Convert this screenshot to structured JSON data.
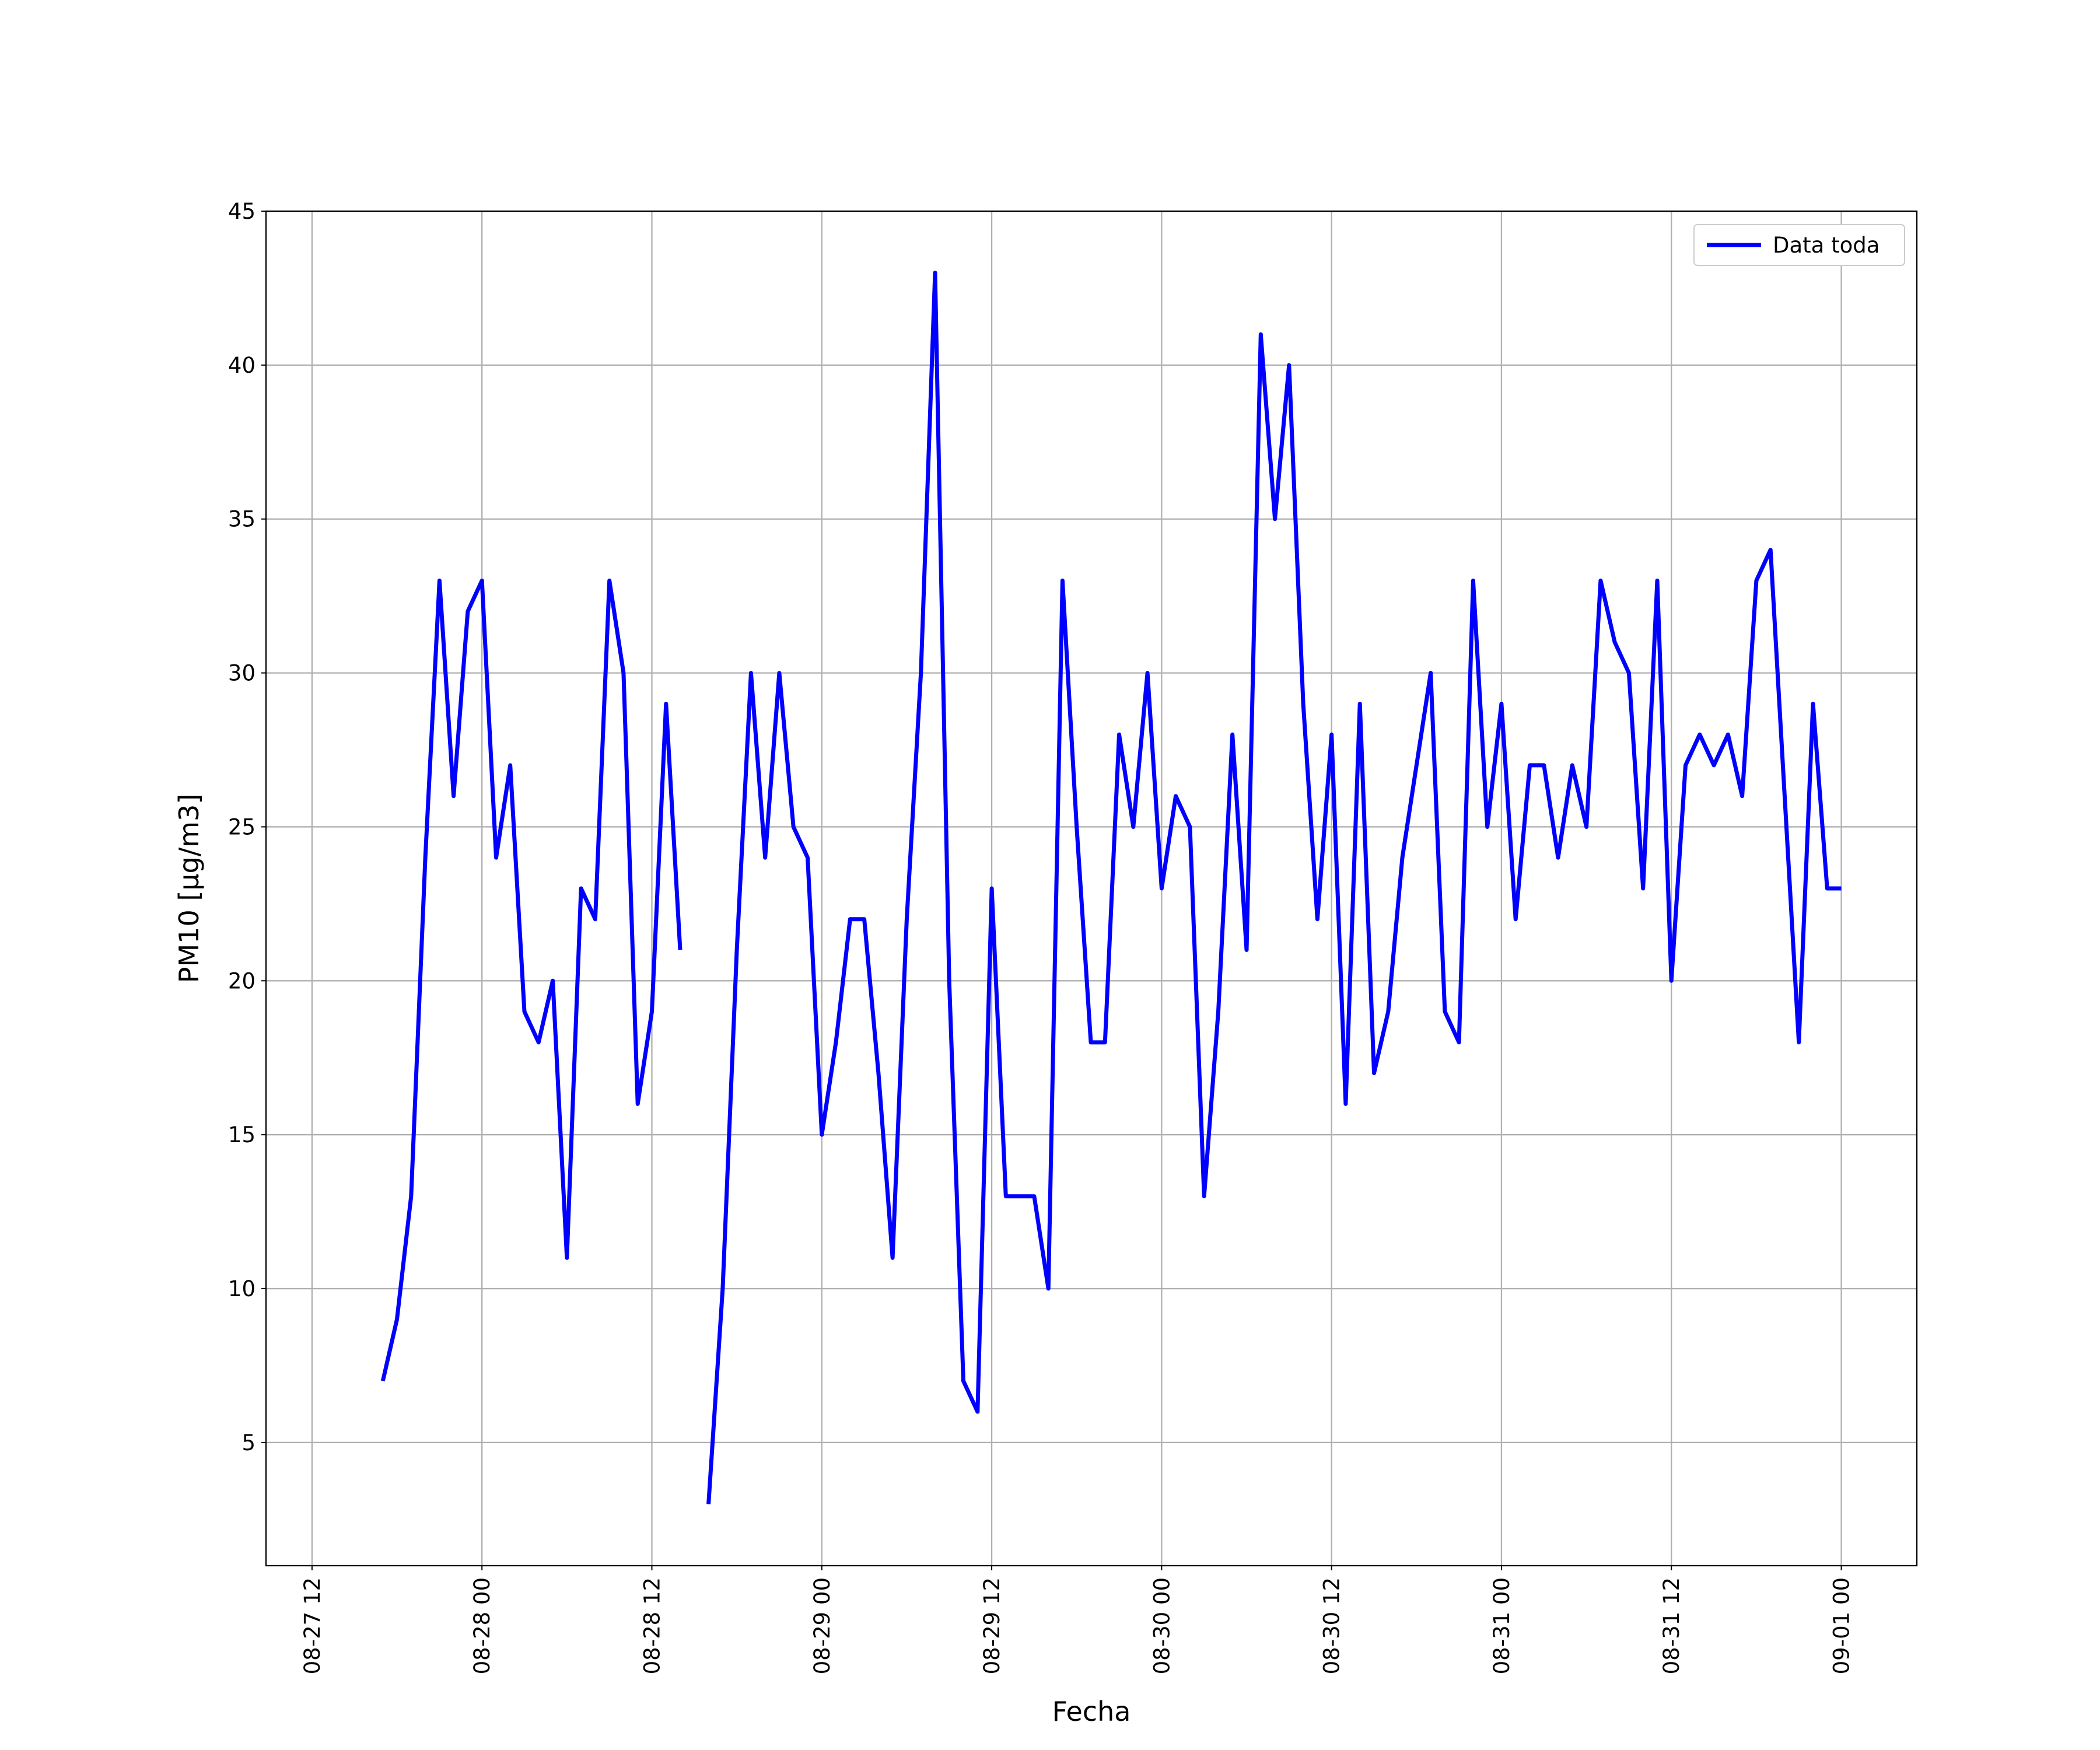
{
  "chart_data": {
    "type": "line",
    "xlabel": "Fecha",
    "ylabel": "PM10 [μg/m3]",
    "x": [
      "08-27 17",
      "08-27 18",
      "08-27 19",
      "08-27 20",
      "08-27 21",
      "08-27 22",
      "08-27 23",
      "08-28 00",
      "08-28 01",
      "08-28 02",
      "08-28 03",
      "08-28 04",
      "08-28 05",
      "08-28 06",
      "08-28 07",
      "08-28 08",
      "08-28 09",
      "08-28 10",
      "08-28 11",
      "08-28 12",
      "08-28 13",
      "08-28 14",
      "08-28 15",
      "08-28 16",
      "08-28 17",
      "08-28 18",
      "08-28 19",
      "08-28 20",
      "08-28 21",
      "08-28 22",
      "08-28 23",
      "08-29 00",
      "08-29 01",
      "08-29 02",
      "08-29 03",
      "08-29 04",
      "08-29 05",
      "08-29 06",
      "08-29 07",
      "08-29 08",
      "08-29 09",
      "08-29 10",
      "08-29 11",
      "08-29 12",
      "08-29 13",
      "08-29 14",
      "08-29 15",
      "08-29 16",
      "08-29 17",
      "08-29 18",
      "08-29 19",
      "08-29 20",
      "08-29 21",
      "08-29 22",
      "08-29 23",
      "08-30 00",
      "08-30 01",
      "08-30 02",
      "08-30 03",
      "08-30 04",
      "08-30 05",
      "08-30 06",
      "08-30 07",
      "08-30 08",
      "08-30 09",
      "08-30 10",
      "08-30 11",
      "08-30 12",
      "08-30 13",
      "08-30 14",
      "08-30 15",
      "08-30 16",
      "08-30 17",
      "08-30 18",
      "08-30 19",
      "08-30 20",
      "08-30 21",
      "08-30 22",
      "08-30 23",
      "08-31 00",
      "08-31 01",
      "08-31 02",
      "08-31 03",
      "08-31 04",
      "08-31 05",
      "08-31 06",
      "08-31 07",
      "08-31 08",
      "08-31 09",
      "08-31 10",
      "08-31 11",
      "08-31 12",
      "08-31 13",
      "08-31 14",
      "08-31 15",
      "08-31 16",
      "08-31 17",
      "08-31 18",
      "08-31 19",
      "08-31 20",
      "08-31 21",
      "08-31 22",
      "08-31 23",
      "09-01 00"
    ],
    "series": [
      {
        "name": "Data toda",
        "color": "#0000ff",
        "values": [
          7,
          9,
          13,
          24,
          33,
          26,
          32,
          33,
          24,
          27,
          19,
          18,
          20,
          11,
          23,
          22,
          33,
          30,
          16,
          19,
          29,
          21,
          null,
          3,
          10,
          21,
          30,
          24,
          30,
          25,
          24,
          15,
          18,
          22,
          22,
          17,
          11,
          22,
          30,
          43,
          20,
          7,
          6,
          23,
          13,
          13,
          13,
          10,
          33,
          25,
          18,
          18,
          28,
          25,
          30,
          23,
          26,
          25,
          13,
          19,
          28,
          21,
          41,
          35,
          40,
          29,
          22,
          28,
          16,
          29,
          17,
          19,
          24,
          27,
          30,
          19,
          18,
          33,
          25,
          29,
          22,
          27,
          27,
          24,
          27,
          25,
          33,
          31,
          30,
          23,
          33,
          20,
          27,
          28,
          27,
          28,
          26,
          33,
          34,
          26,
          18,
          29,
          23,
          23
        ]
      }
    ],
    "xlim": [
      "08-27 08:45",
      "09-01 05:20"
    ],
    "xticks": [
      "08-27 12",
      "08-28 00",
      "08-28 12",
      "08-29 00",
      "08-29 12",
      "08-30 00",
      "08-30 12",
      "08-31 00",
      "08-31 12",
      "09-01 00"
    ],
    "ylim": [
      1,
      45
    ],
    "yticks": [
      5,
      10,
      15,
      20,
      25,
      30,
      35,
      40,
      45
    ],
    "grid": true,
    "legend": "upper right"
  }
}
